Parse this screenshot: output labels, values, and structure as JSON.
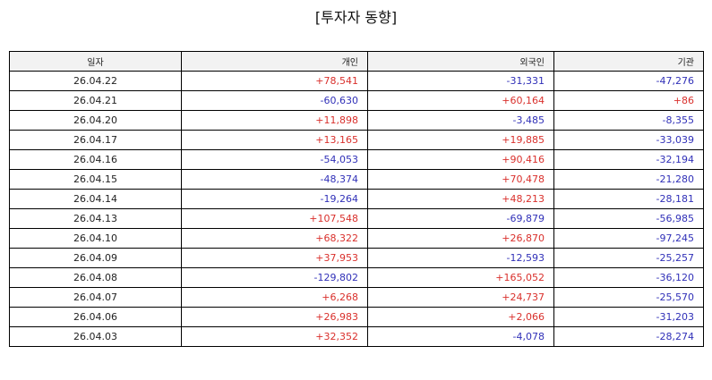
{
  "title": "[투자자 동향]",
  "headers": [
    "일자",
    "개인",
    "외국인",
    "기관"
  ],
  "colors": {
    "positive": "#d9302c",
    "negative": "#3030b8"
  },
  "rows": [
    [
      "26.04.22",
      "+78,541",
      "-31,331",
      "-47,276"
    ],
    [
      "26.04.21",
      "-60,630",
      "+60,164",
      "+86"
    ],
    [
      "26.04.20",
      "+11,898",
      "-3,485",
      "-8,355"
    ],
    [
      "26.04.17",
      "+13,165",
      "+19,885",
      "-33,039"
    ],
    [
      "26.04.16",
      "-54,053",
      "+90,416",
      "-32,194"
    ],
    [
      "26.04.15",
      "-48,374",
      "+70,478",
      "-21,280"
    ],
    [
      "26.04.14",
      "-19,264",
      "+48,213",
      "-28,181"
    ],
    [
      "26.04.13",
      "+107,548",
      "-69,879",
      "-56,985"
    ],
    [
      "26.04.10",
      "+68,322",
      "+26,870",
      "-97,245"
    ],
    [
      "26.04.09",
      "+37,953",
      "-12,593",
      "-25,257"
    ],
    [
      "26.04.08",
      "-129,802",
      "+165,052",
      "-36,120"
    ],
    [
      "26.04.07",
      "+6,268",
      "+24,737",
      "-25,570"
    ],
    [
      "26.04.06",
      "+26,983",
      "+2,066",
      "-31,203"
    ],
    [
      "26.04.03",
      "+32,352",
      "-4,078",
      "-28,274"
    ]
  ]
}
